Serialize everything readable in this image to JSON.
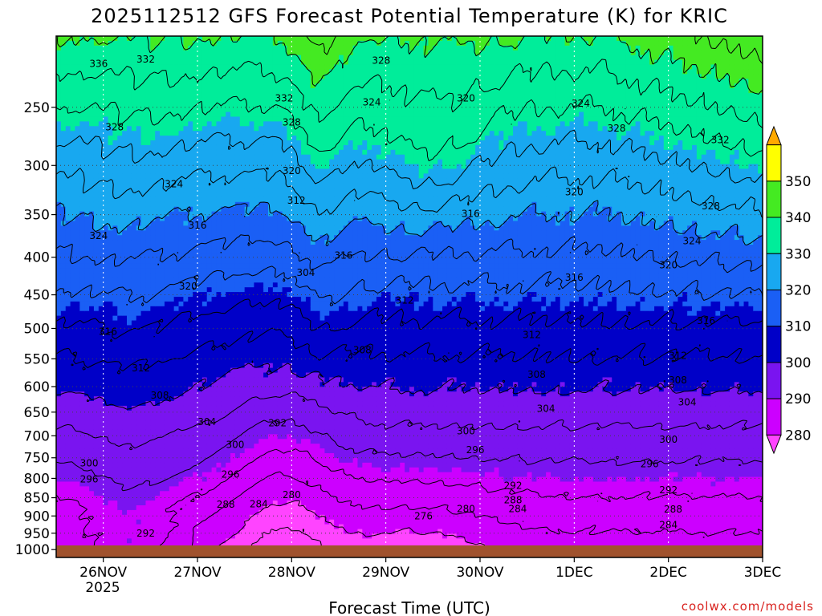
{
  "header": {
    "title": "2025112512 GFS Forecast Potential Temperature (K) for KRIC"
  },
  "footer": {
    "credit": "coolwx.com/models"
  },
  "chart_data": {
    "type": "heatmap",
    "title": "2025112512 GFS Forecast Potential Temperature (K) for KRIC",
    "xlabel": "Forecast Time (UTC)",
    "ylabel": "",
    "x_tick_labels": [
      "26NOV",
      "27NOV",
      "28NOV",
      "29NOV",
      "30NOV",
      "1DEC",
      "2DEC",
      "3DEC"
    ],
    "x_year_label": "2025",
    "x_range_days": [
      -0.5,
      7.0
    ],
    "y_scale": "log-pressure",
    "y_tick_labels": [
      250,
      300,
      350,
      400,
      450,
      500,
      550,
      600,
      650,
      700,
      750,
      800,
      850,
      900,
      950,
      1000
    ],
    "y_range_hpa": [
      200,
      1025
    ],
    "grid": true,
    "colorbar": {
      "levels": [
        270,
        280,
        290,
        300,
        310,
        320,
        330,
        340,
        350,
        360
      ],
      "tick_labels": [
        280,
        290,
        300,
        310,
        320,
        330,
        340,
        350
      ],
      "colors": [
        "#ff44ff",
        "#cc00ff",
        "#7a14f0",
        "#0000c8",
        "#1a5ff5",
        "#18a8f0",
        "#00ed9a",
        "#44ea22",
        "#ffff00",
        "#ffaa00"
      ]
    },
    "contour_interval": 4,
    "contour_labels": [
      {
        "value": 336,
        "day": -0.05,
        "p": 218
      },
      {
        "value": 332,
        "day": 0.45,
        "p": 215
      },
      {
        "value": 328,
        "day": 0.12,
        "p": 266
      },
      {
        "value": 324,
        "day": 0.75,
        "p": 318
      },
      {
        "value": 324,
        "day": -0.05,
        "p": 374
      },
      {
        "value": 320,
        "day": 0.9,
        "p": 438
      },
      {
        "value": 316,
        "day": 0.05,
        "p": 505
      },
      {
        "value": 312,
        "day": 0.4,
        "p": 566
      },
      {
        "value": 308,
        "day": 0.6,
        "p": 617
      },
      {
        "value": 304,
        "day": 1.1,
        "p": 670
      },
      {
        "value": 300,
        "day": 1.4,
        "p": 720
      },
      {
        "value": 300,
        "day": -0.15,
        "p": 763
      },
      {
        "value": 296,
        "day": -0.15,
        "p": 802
      },
      {
        "value": 296,
        "day": 1.35,
        "p": 790
      },
      {
        "value": 292,
        "day": 1.85,
        "p": 673
      },
      {
        "value": 288,
        "day": 1.3,
        "p": 868
      },
      {
        "value": 284,
        "day": 1.65,
        "p": 867
      },
      {
        "value": 280,
        "day": 2.0,
        "p": 843
      },
      {
        "value": 292,
        "day": 0.45,
        "p": 950
      },
      {
        "value": 276,
        "day": 3.4,
        "p": 900
      },
      {
        "value": 280,
        "day": 3.85,
        "p": 880
      },
      {
        "value": 284,
        "day": 4.4,
        "p": 880
      },
      {
        "value": 288,
        "day": 4.35,
        "p": 856
      },
      {
        "value": 292,
        "day": 4.35,
        "p": 818
      },
      {
        "value": 296,
        "day": 3.95,
        "p": 732
      },
      {
        "value": 300,
        "day": 3.85,
        "p": 690
      },
      {
        "value": 304,
        "day": 4.7,
        "p": 643
      },
      {
        "value": 308,
        "day": 4.6,
        "p": 578
      },
      {
        "value": 308,
        "day": 2.75,
        "p": 535
      },
      {
        "value": 312,
        "day": 3.2,
        "p": 458
      },
      {
        "value": 312,
        "day": 4.55,
        "p": 510
      },
      {
        "value": 316,
        "day": 3.9,
        "p": 349
      },
      {
        "value": 316,
        "day": 2.55,
        "p": 398
      },
      {
        "value": 304,
        "day": 2.15,
        "p": 420
      },
      {
        "value": 312,
        "day": 2.05,
        "p": 335
      },
      {
        "value": 316,
        "day": 1.0,
        "p": 362
      },
      {
        "value": 320,
        "day": 2.0,
        "p": 305
      },
      {
        "value": 328,
        "day": 2.0,
        "p": 262
      },
      {
        "value": 332,
        "day": 1.92,
        "p": 243
      },
      {
        "value": 328,
        "day": 2.95,
        "p": 216
      },
      {
        "value": 324,
        "day": 2.85,
        "p": 246
      },
      {
        "value": 320,
        "day": 3.85,
        "p": 243
      },
      {
        "value": 324,
        "day": 5.07,
        "p": 247
      },
      {
        "value": 328,
        "day": 5.45,
        "p": 267
      },
      {
        "value": 320,
        "day": 5.0,
        "p": 326
      },
      {
        "value": 316,
        "day": 5.0,
        "p": 426
      },
      {
        "value": 312,
        "day": 6.1,
        "p": 545
      },
      {
        "value": 308,
        "day": 6.1,
        "p": 588
      },
      {
        "value": 304,
        "day": 6.2,
        "p": 630
      },
      {
        "value": 300,
        "day": 6.0,
        "p": 708
      },
      {
        "value": 296,
        "day": 5.8,
        "p": 765
      },
      {
        "value": 292,
        "day": 6.0,
        "p": 830
      },
      {
        "value": 288,
        "day": 6.05,
        "p": 882
      },
      {
        "value": 284,
        "day": 6.0,
        "p": 926
      },
      {
        "value": 316,
        "day": 6.4,
        "p": 488
      },
      {
        "value": 320,
        "day": 6.0,
        "p": 410
      },
      {
        "value": 324,
        "day": 6.25,
        "p": 380
      },
      {
        "value": 328,
        "day": 6.45,
        "p": 341
      },
      {
        "value": 332,
        "day": 6.55,
        "p": 277
      }
    ]
  }
}
